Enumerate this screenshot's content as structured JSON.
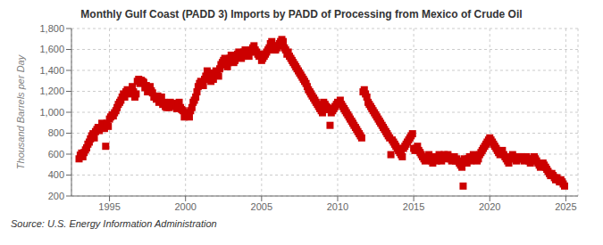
{
  "chart_data": {
    "type": "scatter",
    "title": "Monthly Gulf Coast (PADD 3) Imports by PADD of Processing from Mexico of Crude Oil",
    "y_label": "Thousand Barrels per Day",
    "annotations": [
      "Source: U.S. Energy Information Administration"
    ],
    "color": "#cc0000",
    "marker": "square",
    "grid": true,
    "xlim": [
      1992.5,
      2025.8
    ],
    "xticks": [
      1995,
      2000,
      2005,
      2010,
      2015,
      2020,
      2025
    ],
    "ylim": [
      200,
      1800
    ],
    "yticks": [
      200,
      400,
      600,
      800,
      {
        "value": 1000,
        "label": "1,000"
      },
      {
        "value": 1200,
        "label": "1,200"
      },
      {
        "value": 1400,
        "label": "1,400"
      },
      {
        "value": 1600,
        "label": "1,600"
      },
      {
        "value": 1800,
        "label": "1,800"
      }
    ],
    "x": [
      1993.0,
      1993.08,
      1993.17,
      1993.25,
      1993.33,
      1993.42,
      1993.5,
      1993.58,
      1993.67,
      1993.75,
      1993.83,
      1993.92,
      1994.0,
      1994.08,
      1994.17,
      1994.25,
      1994.33,
      1994.42,
      1994.5,
      1994.58,
      1994.67,
      1994.75,
      1994.83,
      1994.92,
      1995.0,
      1995.08,
      1995.17,
      1995.25,
      1995.33,
      1995.42,
      1995.5,
      1995.58,
      1995.67,
      1995.75,
      1995.83,
      1995.92,
      1996.0,
      1996.08,
      1996.17,
      1996.25,
      1996.33,
      1996.42,
      1996.5,
      1996.58,
      1996.67,
      1996.75,
      1996.83,
      1996.92,
      1997.0,
      1997.08,
      1997.17,
      1997.25,
      1997.33,
      1997.42,
      1997.5,
      1997.58,
      1997.67,
      1997.75,
      1997.83,
      1997.92,
      1998.0,
      1998.08,
      1998.17,
      1998.25,
      1998.33,
      1998.42,
      1998.5,
      1998.58,
      1998.67,
      1998.75,
      1998.83,
      1998.92,
      1999.0,
      1999.08,
      1999.17,
      1999.25,
      1999.33,
      1999.42,
      1999.5,
      1999.58,
      1999.67,
      1999.75,
      1999.83,
      1999.92,
      2000.0,
      2000.08,
      2000.17,
      2000.25,
      2000.33,
      2000.42,
      2000.5,
      2000.58,
      2000.67,
      2000.75,
      2000.83,
      2000.92,
      2001.0,
      2001.08,
      2001.17,
      2001.25,
      2001.33,
      2001.42,
      2001.5,
      2001.58,
      2001.67,
      2001.75,
      2001.83,
      2001.92,
      2002.0,
      2002.08,
      2002.17,
      2002.25,
      2002.33,
      2002.42,
      2002.5,
      2002.58,
      2002.67,
      2002.75,
      2002.83,
      2002.92,
      2003.0,
      2003.08,
      2003.17,
      2003.25,
      2003.33,
      2003.42,
      2003.5,
      2003.58,
      2003.67,
      2003.75,
      2003.83,
      2003.92,
      2004.0,
      2004.08,
      2004.17,
      2004.25,
      2004.33,
      2004.42,
      2004.5,
      2004.58,
      2004.67,
      2004.75,
      2004.83,
      2004.92,
      2005.0,
      2005.08,
      2005.17,
      2005.25,
      2005.33,
      2005.42,
      2005.5,
      2005.58,
      2005.67,
      2005.75,
      2005.83,
      2005.92,
      2006.0,
      2006.08,
      2006.17,
      2006.25,
      2006.33,
      2006.42,
      2006.5,
      2006.58,
      2006.67,
      2006.75,
      2006.83,
      2006.92,
      2007.0,
      2007.08,
      2007.17,
      2007.25,
      2007.33,
      2007.42,
      2007.5,
      2007.58,
      2007.67,
      2007.75,
      2007.83,
      2007.92,
      2008.0,
      2008.08,
      2008.17,
      2008.25,
      2008.33,
      2008.42,
      2008.5,
      2008.58,
      2008.67,
      2008.75,
      2008.83,
      2008.92,
      2009.0,
      2009.08,
      2009.17,
      2009.25,
      2009.33,
      2009.42,
      2009.5,
      2009.58,
      2009.67,
      2009.75,
      2009.83,
      2009.92,
      2010.0,
      2010.08,
      2010.17,
      2010.25,
      2010.33,
      2010.42,
      2010.5,
      2010.58,
      2010.67,
      2010.75,
      2010.83,
      2010.92,
      2011.0,
      2011.08,
      2011.17,
      2011.25,
      2011.33,
      2011.42,
      2011.5,
      2011.58,
      2011.67,
      2011.75,
      2011.83,
      2011.92,
      2012.0,
      2012.08,
      2012.17,
      2012.25,
      2012.33,
      2012.42,
      2012.5,
      2012.58,
      2012.67,
      2012.75,
      2012.83,
      2012.92,
      2013.0,
      2013.08,
      2013.17,
      2013.25,
      2013.33,
      2013.42,
      2013.5,
      2013.58,
      2013.67,
      2013.75,
      2013.83,
      2013.92,
      2014.0,
      2014.08,
      2014.17,
      2014.25,
      2014.33,
      2014.42,
      2014.5,
      2014.58,
      2014.67,
      2014.75,
      2014.83,
      2014.92,
      2015.0,
      2015.08,
      2015.17,
      2015.25,
      2015.33,
      2015.42,
      2015.5,
      2015.58,
      2015.67,
      2015.75,
      2015.83,
      2015.92,
      2016.0,
      2016.08,
      2016.17,
      2016.25,
      2016.33,
      2016.42,
      2016.5,
      2016.58,
      2016.67,
      2016.75,
      2016.83,
      2016.92,
      2017.0,
      2017.08,
      2017.17,
      2017.25,
      2017.33,
      2017.42,
      2017.5,
      2017.58,
      2017.67,
      2017.75,
      2017.83,
      2017.92,
      2018.0,
      2018.08,
      2018.17,
      2018.25,
      2018.33,
      2018.42,
      2018.5,
      2018.58,
      2018.67,
      2018.75,
      2018.83,
      2018.92,
      2019.0,
      2019.08,
      2019.17,
      2019.25,
      2019.33,
      2019.42,
      2019.5,
      2019.58,
      2019.67,
      2019.75,
      2019.83,
      2019.92,
      2020.0,
      2020.08,
      2020.17,
      2020.25,
      2020.33,
      2020.42,
      2020.5,
      2020.58,
      2020.67,
      2020.75,
      2020.83,
      2020.92,
      2021.0,
      2021.08,
      2021.17,
      2021.25,
      2021.33,
      2021.42,
      2021.5,
      2021.58,
      2021.67,
      2021.75,
      2021.83,
      2021.92,
      2022.0,
      2022.08,
      2022.17,
      2022.25,
      2022.33,
      2022.42,
      2022.5,
      2022.58,
      2022.67,
      2022.75,
      2022.83,
      2022.92,
      2023.0,
      2023.08,
      2023.17,
      2023.25,
      2023.33,
      2023.42,
      2023.5,
      2023.58,
      2023.67,
      2023.75,
      2023.83,
      2023.92,
      2024.0,
      2024.08,
      2024.17,
      2024.25,
      2024.33,
      2024.42,
      2024.5,
      2024.58,
      2024.67,
      2024.75,
      2024.83,
      2024.92
    ],
    "values": [
      555,
      590,
      610,
      575,
      615,
      640,
      660,
      695,
      715,
      745,
      775,
      795,
      755,
      815,
      835,
      855,
      825,
      855,
      895,
      865,
      845,
      675,
      895,
      865,
      935,
      955,
      975,
      965,
      995,
      1015,
      1045,
      1075,
      1095,
      1115,
      1145,
      1175,
      1145,
      1195,
      1215,
      1185,
      1175,
      1205,
      1245,
      1195,
      1145,
      1175,
      1295,
      1315,
      1275,
      1305,
      1295,
      1285,
      1235,
      1255,
      1195,
      1215,
      1245,
      1205,
      1185,
      1145,
      1145,
      1125,
      1155,
      1095,
      1115,
      1145,
      1075,
      1095,
      1055,
      1045,
      1065,
      1045,
      1095,
      1075,
      1065,
      1085,
      1055,
      1035,
      1075,
      1095,
      1045,
      1025,
      1015,
      955,
      995,
      975,
      995,
      955,
      1015,
      1045,
      1095,
      1115,
      1145,
      1195,
      1245,
      1275,
      1295,
      1275,
      1255,
      1315,
      1345,
      1395,
      1375,
      1355,
      1295,
      1345,
      1315,
      1375,
      1395,
      1375,
      1345,
      1415,
      1455,
      1475,
      1495,
      1515,
      1455,
      1435,
      1475,
      1515,
      1545,
      1525,
      1475,
      1495,
      1535,
      1555,
      1575,
      1555,
      1515,
      1535,
      1575,
      1595,
      1575,
      1555,
      1535,
      1575,
      1595,
      1615,
      1635,
      1595,
      1575,
      1555,
      1535,
      1555,
      1495,
      1515,
      1535,
      1555,
      1575,
      1595,
      1615,
      1655,
      1675,
      1635,
      1595,
      1595,
      1615,
      1635,
      1655,
      1675,
      1695,
      1675,
      1615,
      1595,
      1555,
      1575,
      1535,
      1515,
      1495,
      1475,
      1455,
      1435,
      1415,
      1395,
      1375,
      1355,
      1335,
      1315,
      1295,
      1275,
      1245,
      1215,
      1195,
      1175,
      1155,
      1135,
      1115,
      1095,
      1075,
      1055,
      1035,
      1015,
      995,
      1095,
      1075,
      1055,
      1045,
      1025,
      875,
      995,
      1015,
      1035,
      1055,
      1075,
      1095,
      1085,
      1115,
      1075,
      1055,
      1035,
      1015,
      995,
      975,
      955,
      935,
      915,
      895,
      875,
      855,
      835,
      815,
      795,
      775,
      755,
      1195,
      1215,
      1175,
      1145,
      1095,
      1075,
      1055,
      1035,
      1015,
      995,
      975,
      955,
      935,
      915,
      895,
      875,
      855,
      835,
      815,
      795,
      775,
      755,
      595,
      735,
      715,
      695,
      675,
      655,
      635,
      615,
      595,
      575,
      655,
      675,
      695,
      715,
      735,
      755,
      775,
      795,
      655,
      635,
      655,
      675,
      635,
      615,
      595,
      575,
      555,
      535,
      555,
      575,
      595,
      555,
      535,
      515,
      575,
      555,
      535,
      575,
      595,
      555,
      535,
      575,
      595,
      575,
      555,
      595,
      575,
      555,
      535,
      555,
      575,
      535,
      555,
      535,
      515,
      495,
      475,
      295,
      555,
      535,
      515,
      555,
      575,
      535,
      555,
      595,
      575,
      555,
      535,
      555,
      595,
      615,
      635,
      655,
      675,
      695,
      715,
      735,
      755,
      735,
      715,
      695,
      675,
      655,
      635,
      615,
      595,
      615,
      635,
      595,
      575,
      555,
      535,
      515,
      555,
      575,
      595,
      575,
      555,
      535,
      555,
      575,
      555,
      575,
      555,
      535,
      555,
      575,
      555,
      535,
      515,
      535,
      555,
      575,
      555,
      535,
      515,
      495,
      475,
      495,
      515,
      495,
      475,
      455,
      435,
      415,
      395,
      415,
      395,
      375,
      355,
      375,
      355,
      335,
      355,
      335,
      315,
      295
    ]
  }
}
